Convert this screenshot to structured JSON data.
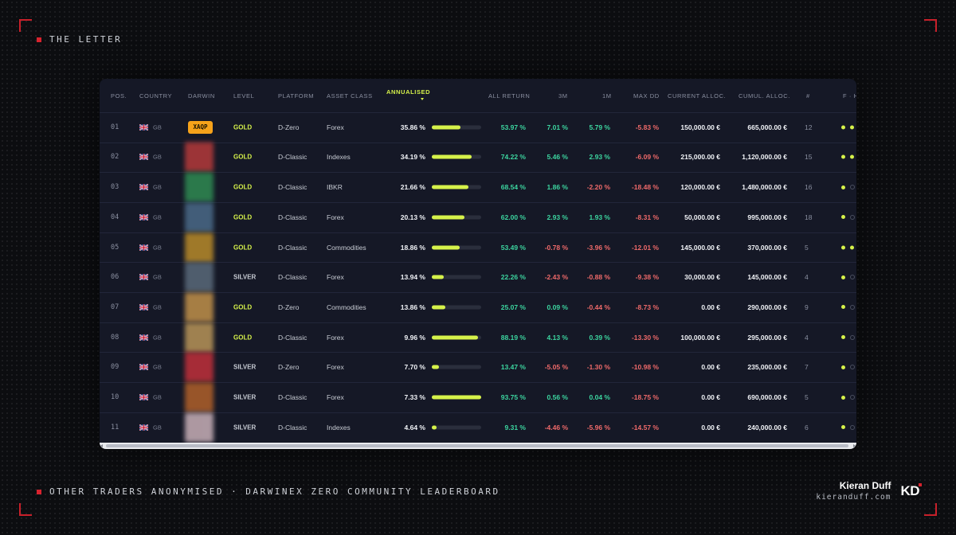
{
  "branding": {
    "top_label": "THE LETTER",
    "bottom_label": "OTHER TRADERS ANONYMISED · DARWINEX ZERO COMMUNITY LEADERBOARD",
    "author_name": "Kieran Duff",
    "author_site": "kieranduff.com",
    "logo_text": "KD",
    "accent_color": "#d8232e"
  },
  "table": {
    "headers": {
      "pos": "POS.",
      "country": "COUNTRY",
      "darwin": "DARWIN",
      "level": "LEVEL",
      "platform": "PLATFORM",
      "asset_class": "ASSET CLASS",
      "annualised": "ANNUALISED",
      "all_return": "ALL RETURN",
      "m3": "3M",
      "m1": "1M",
      "max_dd": "MAX DD",
      "current_alloc": "CURRENT ALLOC.",
      "cumul_alloc": "CUMUL. ALLOC.",
      "count": "#",
      "fh": "F · H"
    },
    "sorted_column": "annualised",
    "rows": [
      {
        "pos": "01",
        "country": "GB",
        "darwin": "XAQP",
        "level": "GOLD",
        "platform": "D-Zero",
        "asset_class": "Forex",
        "annualised": "35.86 %",
        "annualised_bar": 0.58,
        "all_return": "53.97 %",
        "m3": "7.01 %",
        "m1": "5.79 %",
        "max_dd": "-5.83 %",
        "current_alloc": "150,000.00 €",
        "cumul_alloc": "665,000.00 €",
        "count": "12",
        "dots": [
          true,
          true
        ]
      },
      {
        "pos": "02",
        "country": "GB",
        "darwin": "",
        "level": "GOLD",
        "platform": "D-Classic",
        "asset_class": "Indexes",
        "annualised": "34.19 %",
        "annualised_bar": 0.8,
        "all_return": "74.22 %",
        "m3": "5.46 %",
        "m1": "2.93 %",
        "max_dd": "-6.09 %",
        "current_alloc": "215,000.00 €",
        "cumul_alloc": "1,120,000.00 €",
        "count": "15",
        "dots": [
          true,
          true
        ]
      },
      {
        "pos": "03",
        "country": "GB",
        "darwin": "",
        "level": "GOLD",
        "platform": "D-Classic",
        "asset_class": "IBKR",
        "annualised": "21.66 %",
        "annualised_bar": 0.74,
        "all_return": "68.54 %",
        "m3": "1.86 %",
        "m1": "-2.20 %",
        "max_dd": "-18.48 %",
        "current_alloc": "120,000.00 €",
        "cumul_alloc": "1,480,000.00 €",
        "count": "16",
        "dots": [
          true,
          false
        ]
      },
      {
        "pos": "04",
        "country": "GB",
        "darwin": "",
        "level": "GOLD",
        "platform": "D-Classic",
        "asset_class": "Forex",
        "annualised": "20.13 %",
        "annualised_bar": 0.66,
        "all_return": "62.00 %",
        "m3": "2.93 %",
        "m1": "1.93 %",
        "max_dd": "-8.31 %",
        "current_alloc": "50,000.00 €",
        "cumul_alloc": "995,000.00 €",
        "count": "18",
        "dots": [
          true,
          false
        ]
      },
      {
        "pos": "05",
        "country": "GB",
        "darwin": "",
        "level": "GOLD",
        "platform": "D-Classic",
        "asset_class": "Commodities",
        "annualised": "18.86 %",
        "annualised_bar": 0.57,
        "all_return": "53.49 %",
        "m3": "-0.78 %",
        "m1": "-3.96 %",
        "max_dd": "-12.01 %",
        "current_alloc": "145,000.00 €",
        "cumul_alloc": "370,000.00 €",
        "count": "5",
        "dots": [
          true,
          true
        ]
      },
      {
        "pos": "06",
        "country": "GB",
        "darwin": "",
        "level": "SILVER",
        "platform": "D-Classic",
        "asset_class": "Forex",
        "annualised": "13.94 %",
        "annualised_bar": 0.24,
        "all_return": "22.26 %",
        "m3": "-2.43 %",
        "m1": "-0.88 %",
        "max_dd": "-9.38 %",
        "current_alloc": "30,000.00 €",
        "cumul_alloc": "145,000.00 €",
        "count": "4",
        "dots": [
          true,
          false
        ]
      },
      {
        "pos": "07",
        "country": "GB",
        "darwin": "",
        "level": "GOLD",
        "platform": "D-Zero",
        "asset_class": "Commodities",
        "annualised": "13.86 %",
        "annualised_bar": 0.27,
        "all_return": "25.07 %",
        "m3": "0.09 %",
        "m1": "-0.44 %",
        "max_dd": "-8.73 %",
        "current_alloc": "0.00 €",
        "cumul_alloc": "290,000.00 €",
        "count": "9",
        "dots": [
          true,
          false
        ]
      },
      {
        "pos": "08",
        "country": "GB",
        "darwin": "",
        "level": "GOLD",
        "platform": "D-Classic",
        "asset_class": "Forex",
        "annualised": "9.96 %",
        "annualised_bar": 0.94,
        "all_return": "88.19 %",
        "m3": "4.13 %",
        "m1": "0.39 %",
        "max_dd": "-13.30 %",
        "current_alloc": "100,000.00 €",
        "cumul_alloc": "295,000.00 €",
        "count": "4",
        "dots": [
          true,
          false
        ]
      },
      {
        "pos": "09",
        "country": "GB",
        "darwin": "",
        "level": "SILVER",
        "platform": "D-Zero",
        "asset_class": "Forex",
        "annualised": "7.70 %",
        "annualised_bar": 0.15,
        "all_return": "13.47 %",
        "m3": "-5.05 %",
        "m1": "-1.30 %",
        "max_dd": "-10.98 %",
        "current_alloc": "0.00 €",
        "cumul_alloc": "235,000.00 €",
        "count": "7",
        "dots": [
          true,
          false
        ]
      },
      {
        "pos": "10",
        "country": "GB",
        "darwin": "",
        "level": "SILVER",
        "platform": "D-Classic",
        "asset_class": "Forex",
        "annualised": "7.33 %",
        "annualised_bar": 1.0,
        "all_return": "93.75 %",
        "m3": "0.56 %",
        "m1": "0.04 %",
        "max_dd": "-18.75 %",
        "current_alloc": "0.00 €",
        "cumul_alloc": "690,000.00 €",
        "count": "5",
        "dots": [
          true,
          false
        ]
      },
      {
        "pos": "11",
        "country": "GB",
        "darwin": "",
        "level": "SILVER",
        "platform": "D-Classic",
        "asset_class": "Indexes",
        "annualised": "4.64 %",
        "annualised_bar": 0.1,
        "all_return": "9.31 %",
        "m3": "-4.46 %",
        "m1": "-5.96 %",
        "max_dd": "-14.57 %",
        "current_alloc": "0.00 €",
        "cumul_alloc": "240,000.00 €",
        "count": "6",
        "dots": [
          true,
          false
        ]
      }
    ],
    "darwin_blur_colors": [
      "#f6a21a",
      "#b43a3a",
      "#2f8a52",
      "#4a6a88",
      "#b88a2a",
      "#5a6a7a",
      "#c0904a",
      "#b89458",
      "#c0303a",
      "#b0602a",
      "#c8b0b8"
    ]
  }
}
